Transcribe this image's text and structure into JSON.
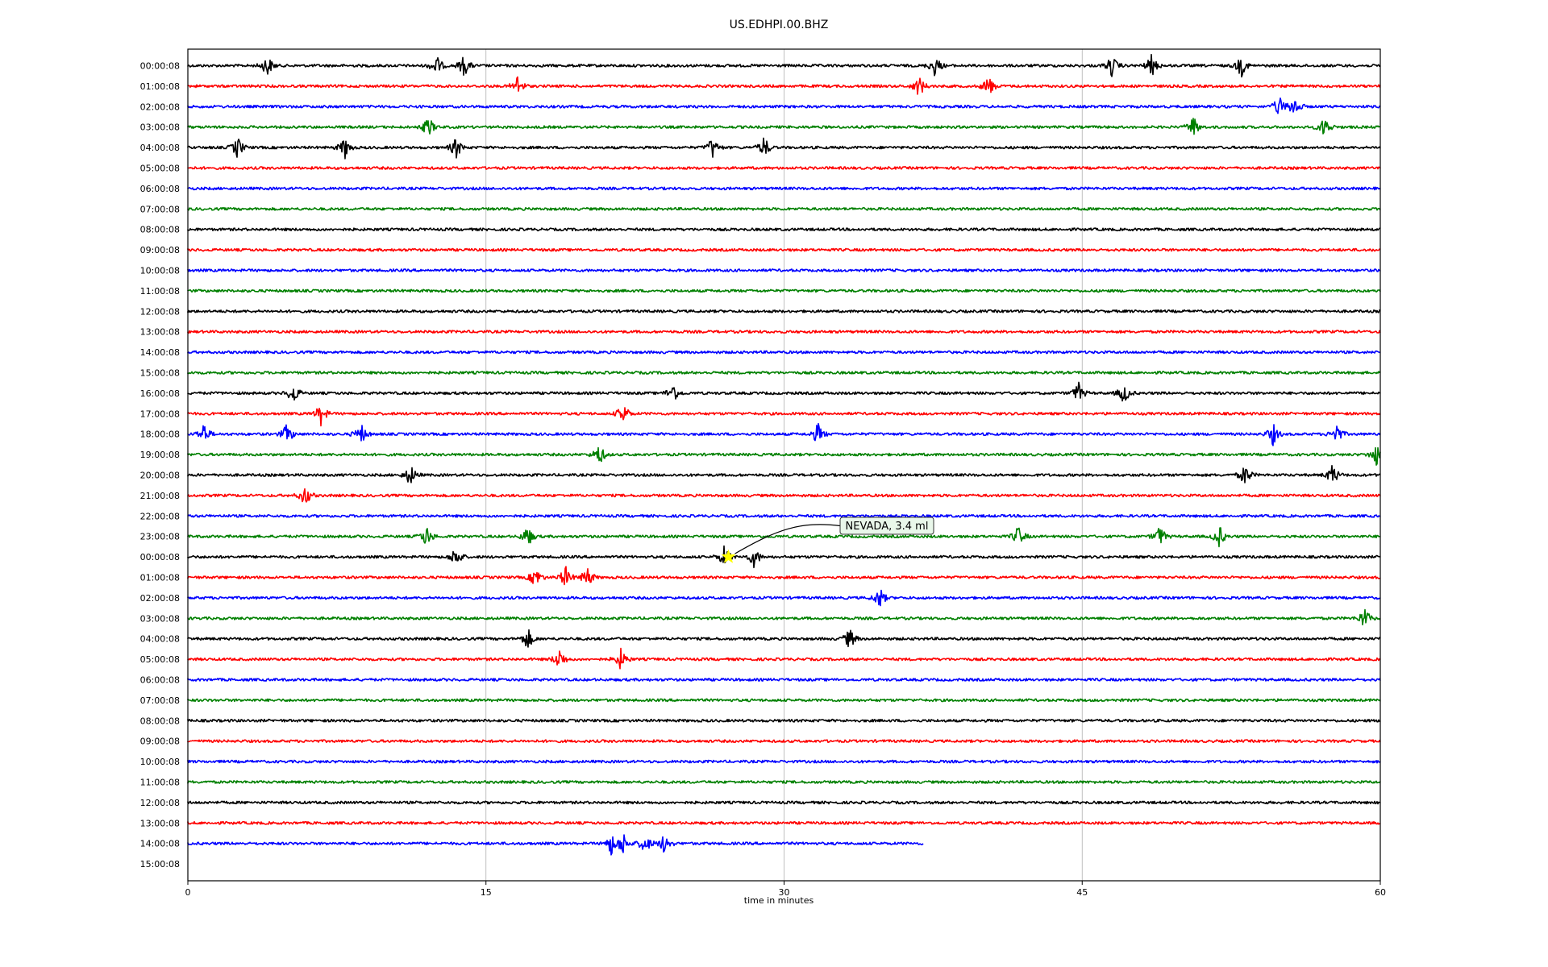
{
  "chart_data": {
    "type": "line",
    "title": "US.EDHPI.00.BHZ",
    "xlabel": "time in minutes",
    "ylabel": "",
    "xlim": [
      0,
      60
    ],
    "x_ticks": [
      "0",
      "15",
      "30",
      "45",
      "60"
    ],
    "grid": "vertical",
    "row_colors": [
      "#000000",
      "#ff0000",
      "#0000ff",
      "#008000"
    ],
    "row_labels": [
      "00:00:08",
      "01:00:08",
      "02:00:08",
      "03:00:08",
      "04:00:08",
      "05:00:08",
      "06:00:08",
      "07:00:08",
      "08:00:08",
      "09:00:08",
      "10:00:08",
      "11:00:08",
      "12:00:08",
      "13:00:08",
      "14:00:08",
      "15:00:08",
      "16:00:08",
      "17:00:08",
      "18:00:08",
      "19:00:08",
      "20:00:08",
      "21:00:08",
      "22:00:08",
      "23:00:08",
      "00:00:08",
      "01:00:08",
      "02:00:08",
      "03:00:08",
      "04:00:08",
      "05:00:08",
      "06:00:08",
      "07:00:08",
      "08:00:08",
      "09:00:08",
      "10:00:08",
      "11:00:08",
      "12:00:08",
      "13:00:08",
      "14:00:08",
      "15:00:08"
    ],
    "rows_end_minute": {
      "38": 37,
      "39": 0
    },
    "events": [
      {
        "row": 0,
        "minutes": [
          4.0,
          12.5,
          13.9,
          37.6,
          46.5,
          48.5,
          53.0
        ]
      },
      {
        "row": 1,
        "minutes": [
          16.6,
          36.8,
          40.3
        ]
      },
      {
        "row": 2,
        "minutes": [
          54.9,
          55.7
        ]
      },
      {
        "row": 3,
        "minutes": [
          12.1,
          50.6,
          57.2
        ]
      },
      {
        "row": 4,
        "minutes": [
          2.5,
          7.9,
          13.5,
          26.4,
          29.0
        ]
      },
      {
        "row": 16,
        "minutes": [
          5.3,
          24.4,
          44.8,
          47.1
        ]
      },
      {
        "row": 17,
        "minutes": [
          6.7,
          21.9
        ]
      },
      {
        "row": 18,
        "minutes": [
          0.8,
          5.0,
          8.7,
          31.7,
          54.6,
          57.8
        ]
      },
      {
        "row": 19,
        "minutes": [
          20.7,
          59.8
        ]
      },
      {
        "row": 20,
        "minutes": [
          11.2,
          53.2,
          57.6
        ]
      },
      {
        "row": 21,
        "minutes": [
          5.9
        ]
      },
      {
        "row": 23,
        "minutes": [
          12.0,
          17.1,
          41.8,
          48.9,
          51.9
        ]
      },
      {
        "row": 24,
        "minutes": [
          13.5,
          27.0,
          28.5
        ]
      },
      {
        "row": 25,
        "minutes": [
          17.5,
          19.0,
          20.1
        ]
      },
      {
        "row": 26,
        "minutes": [
          34.8
        ]
      },
      {
        "row": 27,
        "minutes": [
          59.2
        ]
      },
      {
        "row": 28,
        "minutes": [
          17.1,
          33.3
        ]
      },
      {
        "row": 29,
        "minutes": [
          18.7,
          21.8
        ]
      },
      {
        "row": 38,
        "minutes": [
          21.3,
          21.9,
          23.0,
          24.0
        ]
      }
    ],
    "annotations": [
      {
        "text": "NEVADA, 3.4 ml",
        "row": 24,
        "minute": 27.2,
        "marker": "star",
        "marker_color": "#ffff00"
      }
    ]
  }
}
